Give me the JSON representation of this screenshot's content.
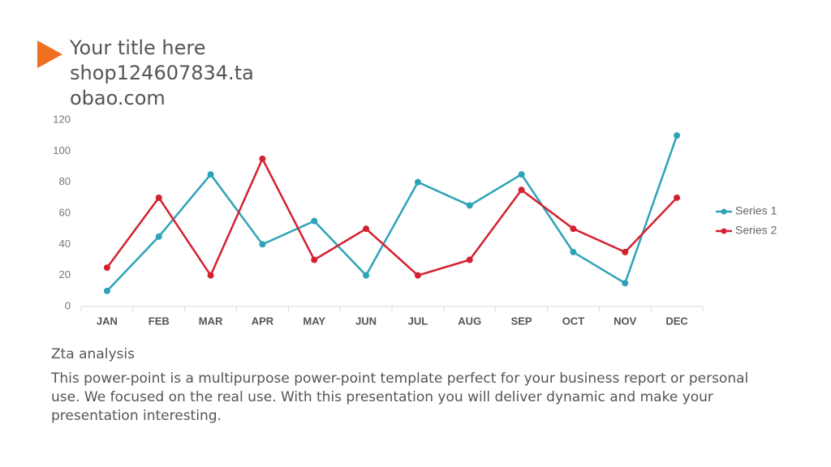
{
  "slide_title": "Your title here shop124607834.taobao.com",
  "chart_data": {
    "type": "line",
    "categories": [
      "JAN",
      "FEB",
      "MAR",
      "APR",
      "MAY",
      "JUN",
      "JUL",
      "AUG",
      "SEP",
      "OCT",
      "NOV",
      "DEC"
    ],
    "series": [
      {
        "name": "Series 1",
        "color": "#2ea3b8",
        "values": [
          10,
          45,
          85,
          40,
          55,
          20,
          80,
          65,
          85,
          35,
          15,
          110
        ]
      },
      {
        "name": "Series 2",
        "color": "#d42130",
        "values": [
          25,
          70,
          20,
          95,
          30,
          50,
          20,
          30,
          75,
          50,
          35,
          70
        ]
      }
    ],
    "ylim": [
      0,
      120
    ],
    "yticks": [
      0,
      20,
      40,
      60,
      80,
      100,
      120
    ],
    "grid": false,
    "legend": "right"
  },
  "body": {
    "heading": "Zta analysis",
    "text": "This power-point is a multipurpose power-point template perfect for your business report or personal use. We focused on the real use. With this presentation you will deliver dynamic and make your presentation interesting."
  }
}
